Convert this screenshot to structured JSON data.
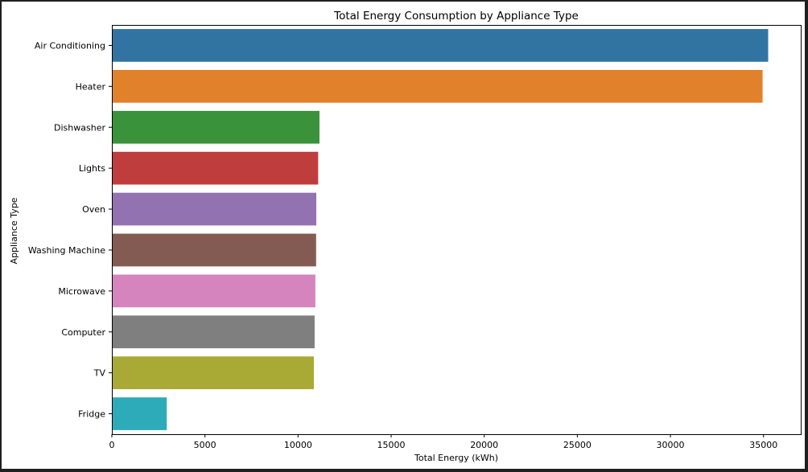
{
  "chart_data": {
    "type": "bar",
    "orientation": "horizontal",
    "title": "Total Energy Consumption by Appliance Type",
    "xlabel": "Total Energy (kWh)",
    "ylabel": "Appliance Type",
    "xlim": [
      0,
      37000
    ],
    "x_ticks": [
      "0",
      "5000",
      "10000",
      "15000",
      "20000",
      "25000",
      "30000",
      "35000"
    ],
    "grid": false,
    "categories": [
      "Air Conditioning",
      "Heater",
      "Dishwasher",
      "Lights",
      "Oven",
      "Washing Machine",
      "Microwave",
      "Computer",
      "TV",
      "Fridge"
    ],
    "values": [
      35250,
      34950,
      11150,
      11080,
      10980,
      10970,
      10930,
      10890,
      10850,
      2950
    ],
    "colors": [
      "#3274a1",
      "#e1812c",
      "#3a923a",
      "#c03d3e",
      "#9372b2",
      "#845b53",
      "#d684bd",
      "#7f7f7f",
      "#a9aa35",
      "#2eabb8"
    ]
  }
}
